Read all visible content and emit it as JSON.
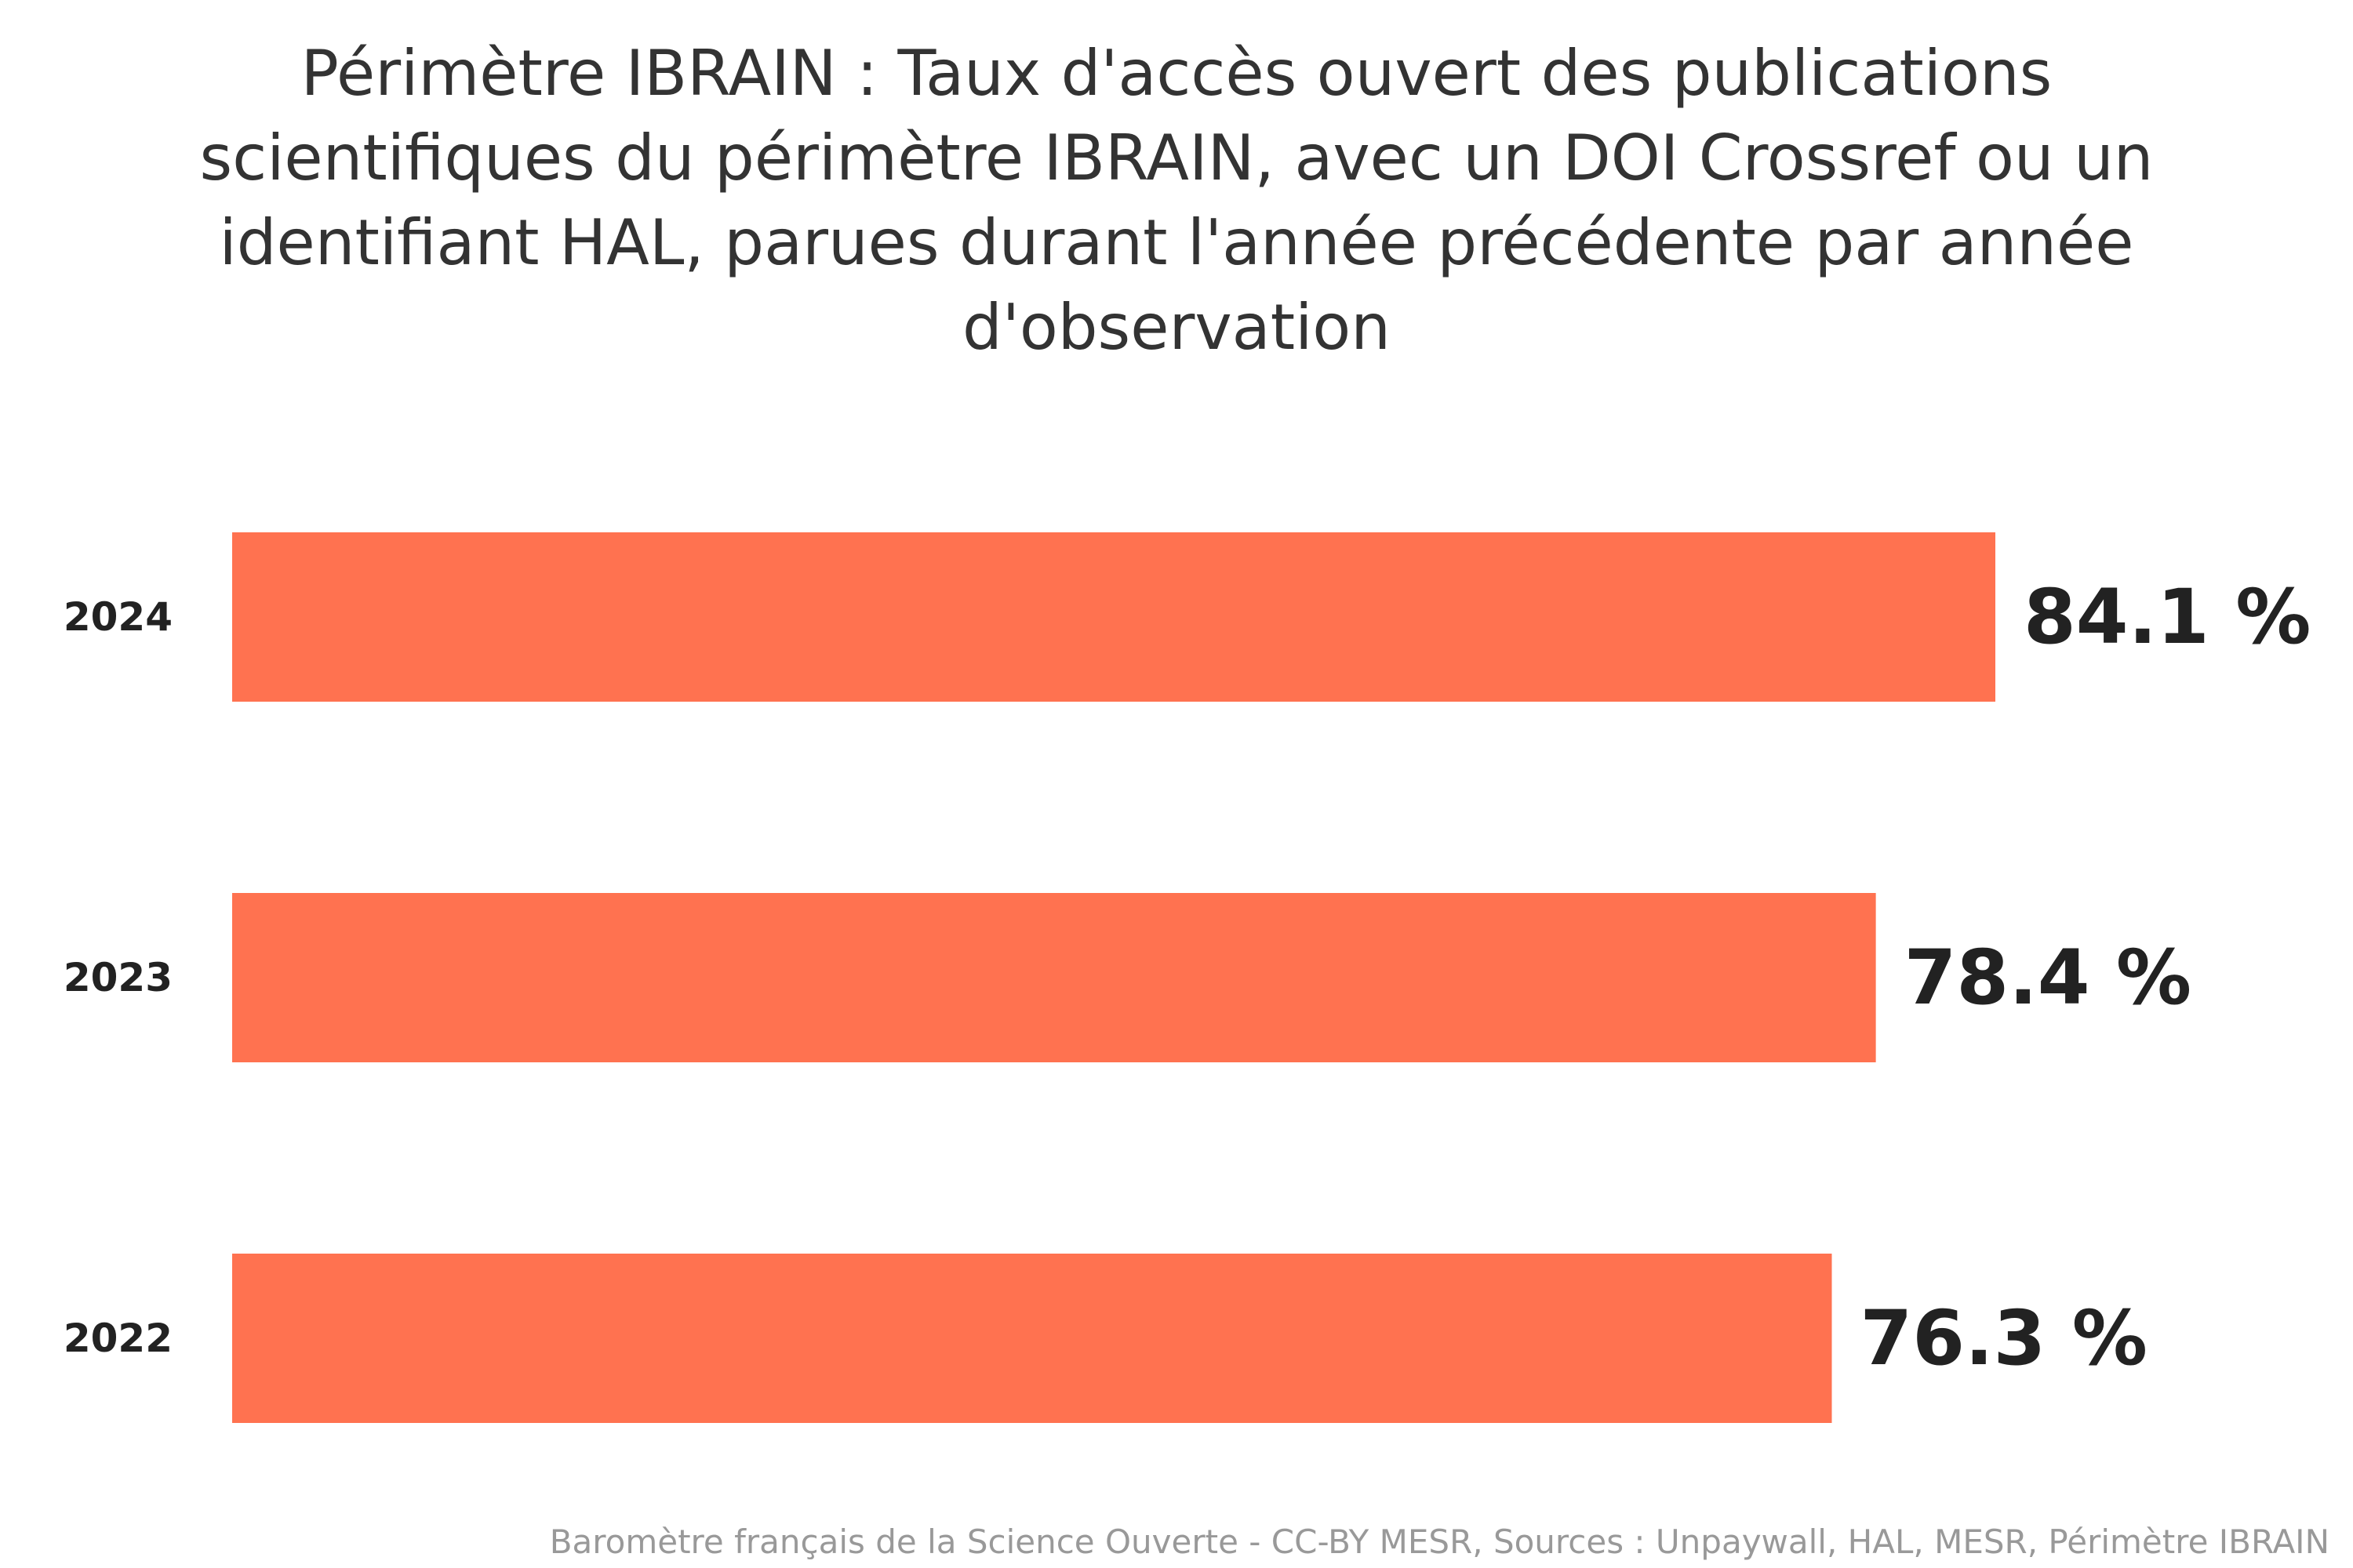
{
  "chart_data": {
    "type": "bar",
    "orientation": "horizontal",
    "title": "Périmètre IBRAIN : Taux d'accès ouvert des publications scientifiques du périmètre IBRAIN, avec un DOI Crossref ou un identifiant HAL, parues durant l'année précédente par année d'observation",
    "categories": [
      "2024",
      "2023",
      "2022"
    ],
    "values": [
      84.1,
      78.4,
      76.3
    ],
    "value_labels": [
      "84.1 %",
      "78.4 %",
      "76.3 %"
    ],
    "xlim": [
      0,
      100
    ],
    "xlabel": "",
    "ylabel": "",
    "grid": false,
    "legend": "none",
    "bar_color": "#ff7250",
    "credits": "Baromètre français de la Science Ouverte - CC-BY MESR, Sources : Unpaywall, HAL, MESR, Périmètre IBRAIN"
  }
}
